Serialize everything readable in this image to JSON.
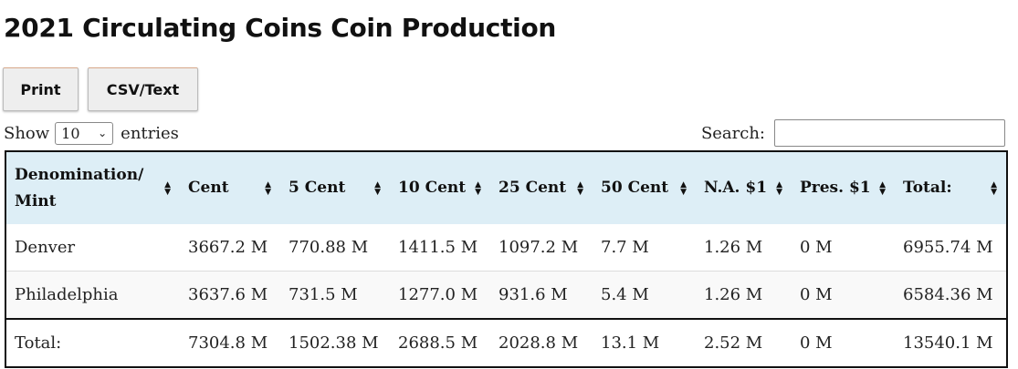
{
  "page": {
    "title": "2021 Circulating Coins Coin Production"
  },
  "toolbar": {
    "print_label": "Print",
    "csv_label": "CSV/Text"
  },
  "length_control": {
    "show_label": "Show",
    "selected_value": "10",
    "entries_label": "entries"
  },
  "search": {
    "label": "Search:",
    "value": ""
  },
  "table": {
    "columns": [
      "Denomination/ Mint",
      "Cent",
      "5 Cent",
      "10 Cent",
      "25 Cent",
      "50 Cent",
      "N.A. $1",
      "Pres. $1",
      "Total:"
    ],
    "rows": [
      [
        "Denver",
        "3667.2 M",
        "770.88 M",
        "1411.5 M",
        "1097.2 M",
        "7.7 M",
        "1.26 M",
        "0 M",
        "6955.74 M"
      ],
      [
        "Philadelphia",
        "3637.6 M",
        "731.5 M",
        "1277.0 M",
        "931.6 M",
        "5.4 M",
        "1.26 M",
        "0 M",
        "6584.36 M"
      ]
    ],
    "footer": [
      "Total:",
      "7304.8 M",
      "1502.38 M",
      "2688.5 M",
      "2028.8 M",
      "13.1 M",
      "2.52 M",
      "0 M",
      "13540.1 M"
    ]
  },
  "icons": {
    "sort": "sort-both-icon",
    "dropdown": "chevron-down-icon"
  }
}
